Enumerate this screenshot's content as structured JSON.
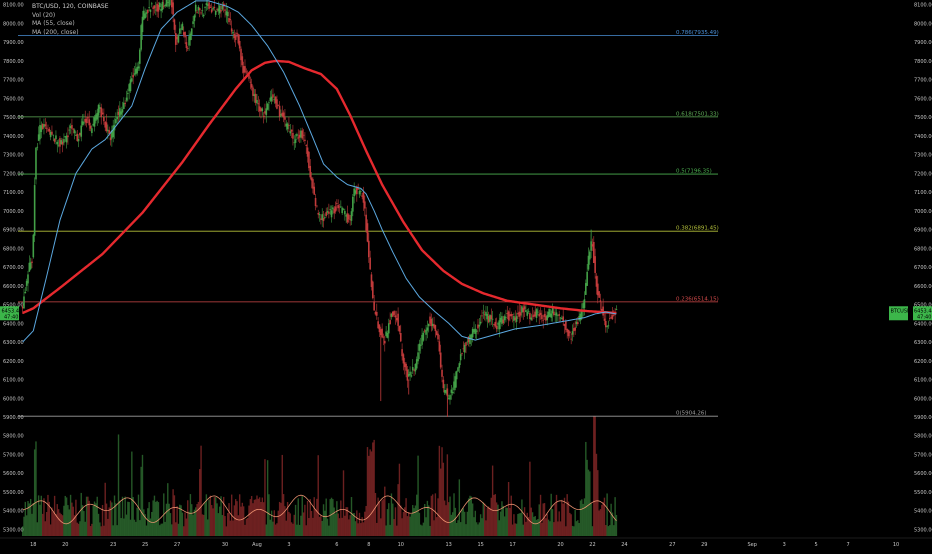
{
  "header": {
    "symbol": "BTC/USD, 120, COINBASE",
    "volume_label": "Vol (20)",
    "ma_short_label": "MA (55, close)",
    "ma_long_label": "MA (200, close)"
  },
  "price_tags": {
    "last_price": "6453.44",
    "countdown": "47:40",
    "symbol_tag": "BTCUSD"
  },
  "colors": {
    "background": "#000000",
    "up": "#43a047",
    "down": "#c23b3b",
    "ma55": "#5ba8e0",
    "ma200": "#e5292e",
    "volume_ma": "#ff9e7a",
    "tag": "#3cb64a"
  },
  "chart_data": {
    "type": "candlestick",
    "symbol": "BTC/USD",
    "interval": "120",
    "exchange": "COINBASE",
    "y_axis": {
      "ylim": [
        5265,
        8125
      ],
      "ticks": [
        "8100.00",
        "8000.00",
        "7900.00",
        "7800.00",
        "7700.00",
        "7600.00",
        "7500.00",
        "7400.00",
        "7300.00",
        "7200.00",
        "7100.00",
        "7000.00",
        "6900.00",
        "6800.00",
        "6700.00",
        "6600.00",
        "6500.00",
        "6400.00",
        "6300.00",
        "6200.00",
        "6100.00",
        "6000.00",
        "5900.00",
        "5800.00",
        "5700.00",
        "5600.00",
        "5500.00",
        "5400.00",
        "5300.00"
      ]
    },
    "x_axis": {
      "ticks": [
        {
          "label": "18",
          "bar": 8
        },
        {
          "label": "20",
          "bar": 32
        },
        {
          "label": "23",
          "bar": 68
        },
        {
          "label": "25",
          "bar": 92
        },
        {
          "label": "27",
          "bar": 116
        },
        {
          "label": "30",
          "bar": 152
        },
        {
          "label": "Aug",
          "bar": 176
        },
        {
          "label": "3",
          "bar": 200
        },
        {
          "label": "6",
          "bar": 236
        },
        {
          "label": "8",
          "bar": 260
        },
        {
          "label": "10",
          "bar": 284
        },
        {
          "label": "13",
          "bar": 320
        },
        {
          "label": "15",
          "bar": 344
        },
        {
          "label": "17",
          "bar": 368
        },
        {
          "label": "20",
          "bar": 404
        },
        {
          "label": "22",
          "bar": 428
        },
        {
          "label": "24",
          "bar": 452
        },
        {
          "label": "27",
          "bar": 488
        },
        {
          "label": "29",
          "bar": 512
        },
        {
          "label": "Sep",
          "bar": 548
        },
        {
          "label": "3",
          "bar": 572
        },
        {
          "label": "5",
          "bar": 596
        },
        {
          "label": "7",
          "bar": 620
        },
        {
          "label": "10",
          "bar": 656
        }
      ],
      "bar_range": [
        -2,
        665
      ]
    },
    "fibonacci": [
      {
        "label": "0.786(7935.49)",
        "value": 7935.49,
        "color": "#4a8fd6"
      },
      {
        "label": "0.618(7501.33)",
        "value": 7501.33,
        "color": "#5fae58"
      },
      {
        "label": "0.5(7196.35)",
        "value": 7196.35,
        "color": "#4caf50"
      },
      {
        "label": "0.382(6891.45)",
        "value": 6891.45,
        "color": "#b5c13b"
      },
      {
        "label": "0.236(6514.15)",
        "value": 6514.15,
        "color": "#d24a4a"
      },
      {
        "label": "0(5904.26)",
        "value": 5904.26,
        "color": "#9e9e9e"
      }
    ],
    "price_path": [
      [
        0,
        6480
      ],
      [
        6,
        6720
      ],
      [
        8,
        6740
      ],
      [
        10,
        7300
      ],
      [
        14,
        7460
      ],
      [
        22,
        7400
      ],
      [
        30,
        7350
      ],
      [
        36,
        7440
      ],
      [
        42,
        7390
      ],
      [
        48,
        7500
      ],
      [
        52,
        7430
      ],
      [
        58,
        7560
      ],
      [
        66,
        7380
      ],
      [
        72,
        7520
      ],
      [
        78,
        7590
      ],
      [
        82,
        7700
      ],
      [
        88,
        7770
      ],
      [
        90,
        8040
      ],
      [
        96,
        8080
      ],
      [
        104,
        8090
      ],
      [
        112,
        8120
      ],
      [
        116,
        7880
      ],
      [
        120,
        7990
      ],
      [
        124,
        7870
      ],
      [
        130,
        8080
      ],
      [
        136,
        8060
      ],
      [
        140,
        8100
      ],
      [
        144,
        8060
      ],
      [
        150,
        8090
      ],
      [
        154,
        8050
      ],
      [
        158,
        7960
      ],
      [
        162,
        7920
      ],
      [
        166,
        7760
      ],
      [
        170,
        7700
      ],
      [
        176,
        7580
      ],
      [
        182,
        7510
      ],
      [
        188,
        7610
      ],
      [
        194,
        7520
      ],
      [
        200,
        7440
      ],
      [
        204,
        7380
      ],
      [
        210,
        7420
      ],
      [
        214,
        7320
      ],
      [
        220,
        7040
      ],
      [
        224,
        6960
      ],
      [
        230,
        6980
      ],
      [
        236,
        7020
      ],
      [
        240,
        7000
      ],
      [
        246,
        6950
      ],
      [
        250,
        7120
      ],
      [
        256,
        7080
      ],
      [
        258,
        6960
      ],
      [
        260,
        6780
      ],
      [
        264,
        6500
      ],
      [
        268,
        6380
      ],
      [
        272,
        6300
      ],
      [
        278,
        6460
      ],
      [
        282,
        6430
      ],
      [
        286,
        6200
      ],
      [
        290,
        6100
      ],
      [
        296,
        6180
      ],
      [
        300,
        6320
      ],
      [
        306,
        6420
      ],
      [
        312,
        6350
      ],
      [
        316,
        6060
      ],
      [
        320,
        6010
      ],
      [
        324,
        6050
      ],
      [
        330,
        6250
      ],
      [
        336,
        6320
      ],
      [
        342,
        6380
      ],
      [
        346,
        6450
      ],
      [
        352,
        6420
      ],
      [
        356,
        6380
      ],
      [
        364,
        6440
      ],
      [
        370,
        6420
      ],
      [
        376,
        6480
      ],
      [
        382,
        6440
      ],
      [
        388,
        6460
      ],
      [
        394,
        6420
      ],
      [
        398,
        6470
      ],
      [
        404,
        6450
      ],
      [
        408,
        6380
      ],
      [
        412,
        6330
      ],
      [
        418,
        6420
      ],
      [
        422,
        6500
      ],
      [
        426,
        6780
      ],
      [
        428,
        6850
      ],
      [
        432,
        6560
      ],
      [
        436,
        6460
      ],
      [
        438,
        6400
      ],
      [
        442,
        6420
      ],
      [
        446,
        6453
      ]
    ],
    "spikes": [
      {
        "bar": 269,
        "low": 5985
      },
      {
        "bar": 290,
        "low": 6020
      },
      {
        "bar": 319,
        "low": 5900
      },
      {
        "bar": 427,
        "high": 6900
      }
    ],
    "ma55_path": [
      [
        0,
        6300
      ],
      [
        8,
        6360
      ],
      [
        18,
        6650
      ],
      [
        28,
        6950
      ],
      [
        40,
        7200
      ],
      [
        52,
        7330
      ],
      [
        62,
        7380
      ],
      [
        72,
        7470
      ],
      [
        82,
        7560
      ],
      [
        92,
        7760
      ],
      [
        104,
        7970
      ],
      [
        116,
        8060
      ],
      [
        130,
        8120
      ],
      [
        140,
        8120
      ],
      [
        154,
        8090
      ],
      [
        162,
        8060
      ],
      [
        172,
        7990
      ],
      [
        184,
        7880
      ],
      [
        196,
        7740
      ],
      [
        208,
        7560
      ],
      [
        218,
        7390
      ],
      [
        226,
        7250
      ],
      [
        236,
        7180
      ],
      [
        244,
        7140
      ],
      [
        254,
        7120
      ],
      [
        258,
        7090
      ],
      [
        264,
        7000
      ],
      [
        270,
        6900
      ],
      [
        278,
        6780
      ],
      [
        288,
        6640
      ],
      [
        298,
        6540
      ],
      [
        310,
        6460
      ],
      [
        320,
        6400
      ],
      [
        330,
        6330
      ],
      [
        340,
        6310
      ],
      [
        350,
        6330
      ],
      [
        360,
        6350
      ],
      [
        370,
        6370
      ],
      [
        380,
        6380
      ],
      [
        390,
        6390
      ],
      [
        398,
        6400
      ],
      [
        406,
        6410
      ],
      [
        414,
        6420
      ],
      [
        422,
        6430
      ],
      [
        430,
        6450
      ],
      [
        438,
        6460
      ],
      [
        446,
        6450
      ]
    ],
    "ma200_path": [
      [
        0,
        6455
      ],
      [
        8,
        6480
      ],
      [
        30,
        6600
      ],
      [
        60,
        6770
      ],
      [
        90,
        6990
      ],
      [
        120,
        7260
      ],
      [
        140,
        7460
      ],
      [
        160,
        7650
      ],
      [
        172,
        7750
      ],
      [
        182,
        7790
      ],
      [
        190,
        7800
      ],
      [
        200,
        7795
      ],
      [
        212,
        7760
      ],
      [
        224,
        7730
      ],
      [
        236,
        7650
      ],
      [
        246,
        7510
      ],
      [
        258,
        7320
      ],
      [
        270,
        7140
      ],
      [
        286,
        6940
      ],
      [
        300,
        6790
      ],
      [
        316,
        6680
      ],
      [
        330,
        6610
      ],
      [
        346,
        6560
      ],
      [
        364,
        6520
      ],
      [
        384,
        6500
      ],
      [
        404,
        6480
      ],
      [
        424,
        6465
      ],
      [
        446,
        6455
      ]
    ],
    "volume": {
      "ylim_rel": [
        0,
        1
      ],
      "note": "relative volume bars at bottom of pane with MA(20) overlay"
    }
  }
}
